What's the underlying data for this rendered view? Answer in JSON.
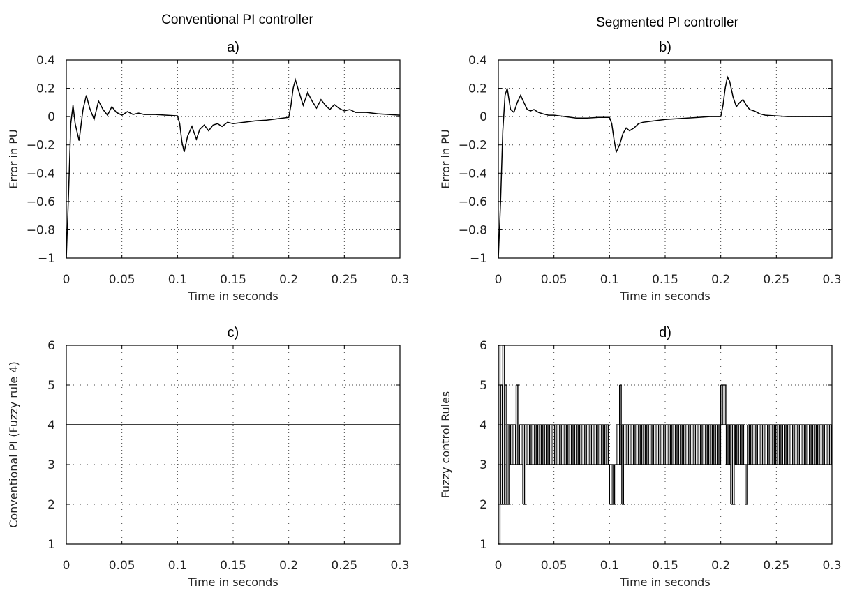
{
  "group_titles": {
    "left": "Conventional PI controller",
    "right": "Segmented PI controller"
  },
  "chart_data": [
    {
      "id": "a",
      "type": "line",
      "title": "a)",
      "xlabel": "Time in seconds",
      "ylabel": "Error in PU",
      "xlim": [
        0,
        0.3
      ],
      "ylim": [
        -1,
        0.4
      ],
      "xticks": [
        0,
        0.05,
        0.1,
        0.15,
        0.2,
        0.25,
        0.3
      ],
      "xtick_labels": [
        "0",
        "0.05",
        "0.1",
        "0.15",
        "0.2",
        "0.25",
        "0.3"
      ],
      "yticks": [
        -1,
        -0.8,
        -0.6,
        -0.4,
        -0.2,
        0,
        0.2,
        0.4
      ],
      "ytick_labels": [
        "−1",
        "−0.8",
        "−0.6",
        "−0.4",
        "−0.2",
        "0",
        "0.2",
        "0.4"
      ],
      "grid": true,
      "series": [
        {
          "x": [
            0,
            0.002,
            0.004,
            0.006,
            0.008,
            0.0115,
            0.015,
            0.018,
            0.021,
            0.025,
            0.029,
            0.033,
            0.037,
            0.041,
            0.045,
            0.05,
            0.055,
            0.06,
            0.065,
            0.07,
            0.08,
            0.09,
            0.1,
            0.102,
            0.104,
            0.106,
            0.109,
            0.113,
            0.117,
            0.12,
            0.124,
            0.128,
            0.132,
            0.136,
            0.14,
            0.145,
            0.15,
            0.16,
            0.17,
            0.18,
            0.19,
            0.2,
            0.202,
            0.204,
            0.206,
            0.209,
            0.213,
            0.217,
            0.221,
            0.225,
            0.229,
            0.233,
            0.237,
            0.241,
            0.245,
            0.25,
            0.255,
            0.26,
            0.27,
            0.28,
            0.29,
            0.3
          ],
          "y": [
            -1,
            -0.55,
            -0.05,
            0.08,
            -0.05,
            -0.17,
            0.05,
            0.15,
            0.06,
            -0.02,
            0.11,
            0.05,
            0.01,
            0.07,
            0.03,
            0.01,
            0.035,
            0.015,
            0.025,
            0.015,
            0.015,
            0.01,
            0.005,
            -0.05,
            -0.18,
            -0.25,
            -0.14,
            -0.07,
            -0.16,
            -0.09,
            -0.06,
            -0.1,
            -0.06,
            -0.05,
            -0.07,
            -0.04,
            -0.05,
            -0.04,
            -0.03,
            -0.025,
            -0.015,
            -0.005,
            0.08,
            0.2,
            0.26,
            0.18,
            0.08,
            0.17,
            0.11,
            0.06,
            0.12,
            0.08,
            0.05,
            0.085,
            0.06,
            0.04,
            0.05,
            0.03,
            0.03,
            0.02,
            0.015,
            0.01
          ]
        }
      ]
    },
    {
      "id": "b",
      "type": "line",
      "title": "b)",
      "xlabel": "Time in seconds",
      "ylabel": "Error in PU",
      "xlim": [
        0,
        0.3
      ],
      "ylim": [
        -1,
        0.4
      ],
      "xticks": [
        0,
        0.05,
        0.1,
        0.15,
        0.2,
        0.25,
        0.3
      ],
      "xtick_labels": [
        "0",
        "0.05",
        "0.1",
        "0.15",
        "0.2",
        "0.25",
        "0.3"
      ],
      "yticks": [
        -1,
        -0.8,
        -0.6,
        -0.4,
        -0.2,
        0,
        0.2,
        0.4
      ],
      "ytick_labels": [
        "−1",
        "−0.8",
        "−0.6",
        "−0.4",
        "−0.2",
        "0",
        "0.2",
        "0.4"
      ],
      "grid": true,
      "series": [
        {
          "x": [
            0,
            0.002,
            0.004,
            0.006,
            0.008,
            0.011,
            0.014,
            0.017,
            0.02,
            0.023,
            0.026,
            0.029,
            0.032,
            0.036,
            0.04,
            0.045,
            0.05,
            0.06,
            0.07,
            0.08,
            0.09,
            0.1,
            0.102,
            0.104,
            0.106,
            0.109,
            0.112,
            0.115,
            0.118,
            0.122,
            0.126,
            0.13,
            0.135,
            0.14,
            0.15,
            0.16,
            0.17,
            0.18,
            0.19,
            0.2,
            0.202,
            0.204,
            0.206,
            0.208,
            0.211,
            0.214,
            0.217,
            0.22,
            0.223,
            0.226,
            0.23,
            0.235,
            0.24,
            0.25,
            0.26,
            0.27,
            0.28,
            0.29,
            0.3
          ],
          "y": [
            -1,
            -0.6,
            -0.1,
            0.15,
            0.2,
            0.05,
            0.03,
            0.1,
            0.15,
            0.1,
            0.05,
            0.04,
            0.05,
            0.03,
            0.02,
            0.01,
            0.01,
            0.0,
            -0.01,
            -0.01,
            -0.005,
            -0.005,
            -0.05,
            -0.16,
            -0.25,
            -0.2,
            -0.12,
            -0.08,
            -0.1,
            -0.08,
            -0.05,
            -0.04,
            -0.035,
            -0.03,
            -0.02,
            -0.015,
            -0.01,
            -0.005,
            0.0,
            0.0,
            0.08,
            0.2,
            0.28,
            0.25,
            0.14,
            0.07,
            0.1,
            0.12,
            0.08,
            0.05,
            0.04,
            0.02,
            0.01,
            0.005,
            0.0,
            0.0,
            0.0,
            0.0,
            0.0
          ]
        }
      ]
    },
    {
      "id": "c",
      "type": "line",
      "title": "c)",
      "xlabel": "Time in seconds",
      "ylabel": "Conventional PI (Fuzzy rule 4)",
      "xlim": [
        0,
        0.3
      ],
      "ylim": [
        1,
        6
      ],
      "xticks": [
        0,
        0.05,
        0.1,
        0.15,
        0.2,
        0.25,
        0.3
      ],
      "xtick_labels": [
        "0",
        "0.05",
        "0.1",
        "0.15",
        "0.2",
        "0.25",
        "0.3"
      ],
      "yticks": [
        1,
        2,
        3,
        4,
        5,
        6
      ],
      "ytick_labels": [
        "1",
        "2",
        "3",
        "4",
        "5",
        "6"
      ],
      "grid": true,
      "series": [
        {
          "x": [
            0,
            0.3
          ],
          "y": [
            4,
            4
          ]
        }
      ]
    },
    {
      "id": "d",
      "type": "line",
      "title": "d)",
      "xlabel": "Time in seconds",
      "ylabel": "Fuzzy control Rules",
      "xlim": [
        0,
        0.3
      ],
      "ylim": [
        1,
        6
      ],
      "xticks": [
        0,
        0.05,
        0.1,
        0.15,
        0.2,
        0.25,
        0.3
      ],
      "xtick_labels": [
        "0",
        "0.05",
        "0.1",
        "0.15",
        "0.2",
        "0.25",
        "0.3"
      ],
      "yticks": [
        1,
        2,
        3,
        4,
        5,
        6
      ],
      "ytick_labels": [
        "1",
        "2",
        "3",
        "4",
        "5",
        "6"
      ],
      "grid": true,
      "rule_segments": [
        {
          "t0": 0.0,
          "t1": 0.002,
          "lo": 1,
          "hi": 6
        },
        {
          "t0": 0.002,
          "t1": 0.004,
          "lo": 2,
          "hi": 5
        },
        {
          "t0": 0.004,
          "t1": 0.006,
          "lo": 2,
          "hi": 6
        },
        {
          "t0": 0.006,
          "t1": 0.008,
          "lo": 2,
          "hi": 5
        },
        {
          "t0": 0.008,
          "t1": 0.011,
          "lo": 2,
          "hi": 4
        },
        {
          "t0": 0.011,
          "t1": 0.016,
          "lo": 3,
          "hi": 4
        },
        {
          "t0": 0.016,
          "t1": 0.019,
          "lo": 3,
          "hi": 5
        },
        {
          "t0": 0.019,
          "t1": 0.022,
          "lo": 3,
          "hi": 4
        },
        {
          "t0": 0.022,
          "t1": 0.025,
          "lo": 2,
          "hi": 4
        },
        {
          "t0": 0.025,
          "t1": 0.1,
          "lo": 3,
          "hi": 4
        },
        {
          "t0": 0.1,
          "t1": 0.106,
          "lo": 2,
          "hi": 3
        },
        {
          "t0": 0.106,
          "t1": 0.109,
          "lo": 3,
          "hi": 4
        },
        {
          "t0": 0.109,
          "t1": 0.111,
          "lo": 3,
          "hi": 5
        },
        {
          "t0": 0.111,
          "t1": 0.114,
          "lo": 2,
          "hi": 4
        },
        {
          "t0": 0.114,
          "t1": 0.2,
          "lo": 3,
          "hi": 4
        },
        {
          "t0": 0.2,
          "t1": 0.205,
          "lo": 4,
          "hi": 5
        },
        {
          "t0": 0.205,
          "t1": 0.209,
          "lo": 3,
          "hi": 4
        },
        {
          "t0": 0.209,
          "t1": 0.213,
          "lo": 2,
          "hi": 4
        },
        {
          "t0": 0.213,
          "t1": 0.222,
          "lo": 3,
          "hi": 4
        },
        {
          "t0": 0.222,
          "t1": 0.224,
          "lo": 2,
          "hi": 3
        },
        {
          "t0": 0.224,
          "t1": 0.3,
          "lo": 3,
          "hi": 4
        }
      ]
    }
  ]
}
